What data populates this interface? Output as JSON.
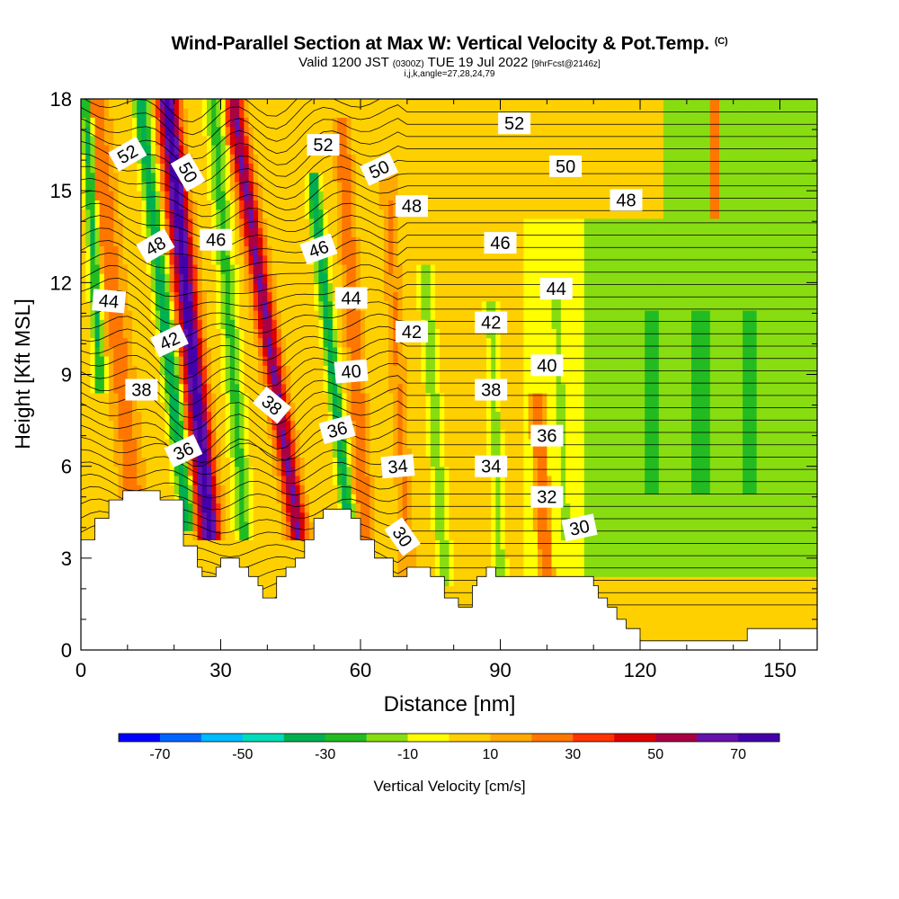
{
  "title": {
    "main": "Wind-Parallel Section at Max W: Vertical Velocity & Pot.Temp.",
    "copyright": "(C)",
    "valid_prefix": "Valid 1200 JST",
    "valid_utc": "(0300Z)",
    "valid_date": "TUE 19 Jul 2022",
    "forecast": "[9hrFcst@2146z]",
    "params": "i,j,k,angle=27,28,24,79"
  },
  "chart_data": {
    "type": "heatmap",
    "xlabel": "Distance [nm]",
    "ylabel": "Height [Kft MSL]",
    "xlim": [
      0,
      158
    ],
    "ylim": [
      0,
      18
    ],
    "x_ticks": [
      0,
      30,
      60,
      90,
      120,
      150
    ],
    "y_ticks": [
      0,
      3,
      6,
      9,
      12,
      15,
      18
    ],
    "grid": false,
    "colorbar": {
      "label": "Vertical Velocity [cm/s]",
      "placement": "bottom",
      "levels": [
        -80,
        -70,
        -60,
        -50,
        -40,
        -30,
        -20,
        -10,
        0,
        10,
        20,
        30,
        40,
        50,
        60,
        70,
        80
      ],
      "tick_labels": [
        -70,
        -50,
        -30,
        -10,
        10,
        30,
        50,
        70
      ],
      "colors": [
        "#0000ff",
        "#0066ff",
        "#00bbff",
        "#00ddbb",
        "#00b050",
        "#22bb22",
        "#88dd11",
        "#ffff00",
        "#ffd000",
        "#ffaa00",
        "#ff7700",
        "#ff3300",
        "#dd0000",
        "#aa0044",
        "#6611aa",
        "#4400aa"
      ]
    },
    "terrain": [
      [
        0,
        3.6
      ],
      [
        3,
        3.6
      ],
      [
        3,
        4.3
      ],
      [
        6,
        4.3
      ],
      [
        6,
        4.9
      ],
      [
        9,
        4.9
      ],
      [
        9,
        5.2
      ],
      [
        17,
        5.2
      ],
      [
        17,
        4.9
      ],
      [
        22,
        4.9
      ],
      [
        22,
        3.4
      ],
      [
        25,
        3.4
      ],
      [
        25,
        2.7
      ],
      [
        26,
        2.7
      ],
      [
        26,
        2.4
      ],
      [
        29,
        2.4
      ],
      [
        29,
        2.7
      ],
      [
        30,
        2.7
      ],
      [
        30,
        3.0
      ],
      [
        34,
        3.0
      ],
      [
        34,
        2.7
      ],
      [
        36,
        2.7
      ],
      [
        36,
        2.4
      ],
      [
        38,
        2.4
      ],
      [
        38,
        2.1
      ],
      [
        39,
        2.1
      ],
      [
        39,
        1.7
      ],
      [
        42,
        1.7
      ],
      [
        42,
        2.4
      ],
      [
        44,
        2.4
      ],
      [
        44,
        2.7
      ],
      [
        46,
        2.7
      ],
      [
        46,
        3.0
      ],
      [
        48,
        3.0
      ],
      [
        48,
        3.6
      ],
      [
        50,
        3.6
      ],
      [
        50,
        4.3
      ],
      [
        52,
        4.3
      ],
      [
        52,
        4.6
      ],
      [
        58,
        4.6
      ],
      [
        58,
        4.3
      ],
      [
        60,
        4.3
      ],
      [
        60,
        3.6
      ],
      [
        63,
        3.6
      ],
      [
        63,
        3.0
      ],
      [
        67,
        3.0
      ],
      [
        67,
        2.4
      ],
      [
        70,
        2.4
      ],
      [
        70,
        2.7
      ],
      [
        75,
        2.7
      ],
      [
        75,
        2.4
      ],
      [
        78,
        2.4
      ],
      [
        78,
        1.7
      ],
      [
        81,
        1.7
      ],
      [
        81,
        1.4
      ],
      [
        84,
        1.4
      ],
      [
        84,
        2.1
      ],
      [
        85,
        2.1
      ],
      [
        85,
        2.4
      ],
      [
        87,
        2.4
      ],
      [
        87,
        2.7
      ],
      [
        89,
        2.7
      ],
      [
        89,
        2.4
      ],
      [
        110,
        2.4
      ],
      [
        110,
        2.1
      ],
      [
        111,
        2.1
      ],
      [
        111,
        1.7
      ],
      [
        113,
        1.7
      ],
      [
        113,
        1.4
      ],
      [
        115,
        1.4
      ],
      [
        115,
        1.0
      ],
      [
        117,
        1.0
      ],
      [
        117,
        0.7
      ],
      [
        120,
        0.7
      ],
      [
        120,
        0.3
      ],
      [
        143,
        0.3
      ],
      [
        143,
        0.7
      ],
      [
        158,
        0.7
      ]
    ],
    "w_features": [
      {
        "x0": 27.5,
        "x1": 18.5,
        "y0": 4.0,
        "y1": 18.0,
        "width": 3.0,
        "w": 72
      },
      {
        "x0": 46.5,
        "x1": 33.0,
        "y0": 4.0,
        "y1": 17.5,
        "width": 2.6,
        "w": 56
      },
      {
        "x0": 22.5,
        "x1": 13.0,
        "y0": 4.5,
        "y1": 17.5,
        "width": 2.0,
        "w": -44
      },
      {
        "x0": 57.5,
        "x1": 50.0,
        "y0": 4.0,
        "y1": 15.0,
        "width": 1.8,
        "w": -42
      },
      {
        "x0": 11.5,
        "x1": 3.0,
        "y0": 4.5,
        "y1": 18.0,
        "width": 3.2,
        "w": 22
      },
      {
        "x0": 35.0,
        "x1": 28.5,
        "y0": 4.0,
        "y1": 18.0,
        "width": 2.4,
        "w": -28
      },
      {
        "x0": 4.0,
        "x1": 1.0,
        "y0": 9.0,
        "y1": 18.0,
        "width": 1.5,
        "w": -36
      },
      {
        "x0": 61.0,
        "x1": 56.0,
        "y0": 4.0,
        "y1": 17.0,
        "width": 2.2,
        "w": 24
      },
      {
        "x0": 78.0,
        "x1": 74.0,
        "y0": 2.5,
        "y1": 12.0,
        "width": 2.0,
        "w": -22
      },
      {
        "x0": 90.0,
        "x1": 88.0,
        "y0": 2.5,
        "y1": 11.0,
        "width": 1.7,
        "w": -20
      },
      {
        "x0": 104.0,
        "x1": 102.0,
        "y0": 4.0,
        "y1": 11.5,
        "width": 2.2,
        "w": -18
      },
      {
        "x0": 70.0,
        "x1": 66.0,
        "y0": 3.0,
        "y1": 15.0,
        "width": 2.0,
        "w": 16
      },
      {
        "x0": 100.0,
        "x1": 98.0,
        "y0": 2.0,
        "y1": 8.0,
        "width": 2.0,
        "w": 24
      },
      {
        "x0": 136.0,
        "x1": 136.0,
        "y0": 14.5,
        "y1": 18.0,
        "width": 2.5,
        "w": 18
      }
    ],
    "theta_contours": [
      {
        "value": 30,
        "label_x": 107,
        "label_y": 4.0,
        "angle": 12
      },
      {
        "value": 32,
        "label_x": 100,
        "label_y": 5.0,
        "angle": 0
      },
      {
        "value": 34,
        "label_x": 88,
        "label_y": 6.0,
        "angle": 0
      },
      {
        "value": 34,
        "label_x": 68,
        "label_y": 6.0,
        "angle": 5
      },
      {
        "value": 30,
        "label_x": 69,
        "label_y": 3.7,
        "angle": -55
      },
      {
        "value": 36,
        "label_x": 100,
        "label_y": 7.0,
        "angle": 0
      },
      {
        "value": 36,
        "label_x": 55,
        "label_y": 7.2,
        "angle": 15
      },
      {
        "value": 36,
        "label_x": 22,
        "label_y": 6.5,
        "angle": 25
      },
      {
        "value": 38,
        "label_x": 88,
        "label_y": 8.5,
        "angle": 0
      },
      {
        "value": 38,
        "label_x": 41,
        "label_y": 8.0,
        "angle": -40
      },
      {
        "value": 38,
        "label_x": 13,
        "label_y": 8.5,
        "angle": 0
      },
      {
        "value": 40,
        "label_x": 100,
        "label_y": 9.3,
        "angle": 0
      },
      {
        "value": 40,
        "label_x": 58,
        "label_y": 9.1,
        "angle": 5
      },
      {
        "value": 42,
        "label_x": 88,
        "label_y": 10.7,
        "angle": 0
      },
      {
        "value": 42,
        "label_x": 71,
        "label_y": 10.4,
        "angle": 0
      },
      {
        "value": 42,
        "label_x": 19,
        "label_y": 10.1,
        "angle": 25
      },
      {
        "value": 44,
        "label_x": 102,
        "label_y": 11.8,
        "angle": 0
      },
      {
        "value": 44,
        "label_x": 58,
        "label_y": 11.5,
        "angle": 0
      },
      {
        "value": 44,
        "label_x": 6,
        "label_y": 11.4,
        "angle": -5
      },
      {
        "value": 46,
        "label_x": 90,
        "label_y": 13.3,
        "angle": 0
      },
      {
        "value": 46,
        "label_x": 51,
        "label_y": 13.1,
        "angle": 20
      },
      {
        "value": 46,
        "label_x": 29,
        "label_y": 13.4,
        "angle": 0
      },
      {
        "value": 48,
        "label_x": 117,
        "label_y": 14.7,
        "angle": 0
      },
      {
        "value": 48,
        "label_x": 71,
        "label_y": 14.5,
        "angle": 0
      },
      {
        "value": 48,
        "label_x": 16,
        "label_y": 13.2,
        "angle": 30
      },
      {
        "value": 50,
        "label_x": 104,
        "label_y": 15.8,
        "angle": 0
      },
      {
        "value": 50,
        "label_x": 64,
        "label_y": 15.7,
        "angle": 25
      },
      {
        "value": 50,
        "label_x": 23,
        "label_y": 15.6,
        "angle": -60
      },
      {
        "value": 52,
        "label_x": 93,
        "label_y": 17.2,
        "angle": 0
      },
      {
        "value": 52,
        "label_x": 52,
        "label_y": 16.5,
        "angle": 0
      },
      {
        "value": 52,
        "label_x": 10,
        "label_y": 16.2,
        "angle": 30
      }
    ]
  }
}
